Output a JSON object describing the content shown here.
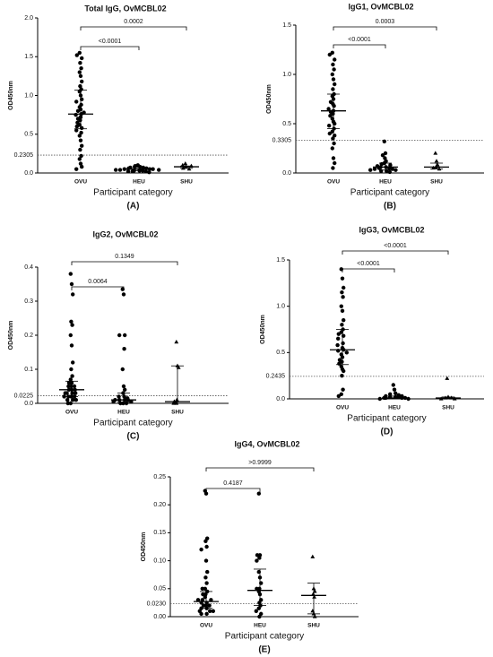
{
  "chart_data": [
    {
      "type": "dotplot",
      "title": "Total IgG, OvMCBL02",
      "y_label": "OD450nm",
      "x_label": "Participant category",
      "panel_label": "(A)",
      "categories": [
        "OVU",
        "HEU",
        "SHU"
      ],
      "groups": [
        {
          "marker": "circle",
          "values": [
            1.55,
            1.52,
            1.48,
            1.42,
            1.35,
            1.3,
            1.25,
            1.18,
            1.12,
            1.08,
            1.05,
            1.0,
            0.95,
            0.92,
            0.88,
            0.85,
            0.82,
            0.8,
            0.78,
            0.76,
            0.75,
            0.72,
            0.7,
            0.68,
            0.65,
            0.62,
            0.6,
            0.58,
            0.55,
            0.52,
            0.48,
            0.42,
            0.35,
            0.3,
            0.22,
            0.18,
            0.12,
            0.08,
            0.05
          ],
          "median": 0.76,
          "q1": 0.57,
          "q3": 1.07
        },
        {
          "marker": "circle",
          "values": [
            0.1,
            0.09,
            0.08,
            0.08,
            0.07,
            0.07,
            0.06,
            0.06,
            0.05,
            0.05,
            0.05,
            0.04,
            0.04,
            0.04,
            0.03,
            0.03,
            0.03,
            0.02,
            0.02,
            0.02,
            0.01
          ],
          "median": 0.05,
          "q1": 0.03,
          "q3": 0.07
        },
        {
          "marker": "triangle",
          "values": [
            0.12,
            0.1,
            0.09,
            0.08,
            0.06,
            0.05
          ],
          "median": 0.08,
          "q1": 0.06,
          "q3": 0.09
        }
      ],
      "cutoff": 0.2305,
      "comparisons": [
        {
          "from": "OVU",
          "to": "HEU",
          "p": "<0.0001"
        },
        {
          "from": "OVU",
          "to": "SHU",
          "p": "0.0002"
        }
      ],
      "ylim": [
        0,
        2
      ],
      "yticks": [
        {
          "value": 0,
          "label": "0.0"
        },
        {
          "value": 0.5,
          "label": "0.5"
        },
        {
          "value": 1,
          "label": "1.0"
        },
        {
          "value": 1.5,
          "label": "1.5"
        },
        {
          "value": 2,
          "label": "2.0"
        }
      ],
      "color": "#000000"
    },
    {
      "type": "dotplot",
      "title": "IgG1, OvMCBL02",
      "y_label": "OD450nm",
      "x_label": "Participant category",
      "panel_label": "(B)",
      "categories": [
        "OVU",
        "HEU",
        "SHU"
      ],
      "groups": [
        {
          "marker": "circle",
          "values": [
            1.22,
            1.2,
            1.15,
            1.1,
            1.05,
            1.0,
            0.95,
            0.9,
            0.85,
            0.8,
            0.78,
            0.75,
            0.72,
            0.7,
            0.68,
            0.65,
            0.63,
            0.62,
            0.6,
            0.58,
            0.55,
            0.52,
            0.5,
            0.48,
            0.45,
            0.42,
            0.4,
            0.38,
            0.35,
            0.3,
            0.25,
            0.15,
            0.1,
            0.05
          ],
          "median": 0.63,
          "q1": 0.45,
          "q3": 0.8
        },
        {
          "marker": "circle",
          "values": [
            0.32,
            0.2,
            0.18,
            0.15,
            0.12,
            0.1,
            0.09,
            0.08,
            0.07,
            0.06,
            0.06,
            0.05,
            0.05,
            0.04,
            0.04,
            0.03,
            0.03,
            0.02,
            0.02,
            0.01
          ],
          "median": 0.06,
          "q1": 0.03,
          "q3": 0.1
        },
        {
          "marker": "triangle",
          "values": [
            0.2,
            0.12,
            0.08,
            0.06,
            0.05,
            0.04
          ],
          "median": 0.06,
          "q1": 0.04,
          "q3": 0.1
        }
      ],
      "cutoff": 0.3305,
      "comparisons": [
        {
          "from": "OVU",
          "to": "HEU",
          "p": "<0.0001"
        },
        {
          "from": "OVU",
          "to": "SHU",
          "p": "0.0003"
        }
      ],
      "ylim": [
        0,
        1.5
      ],
      "yticks": [
        {
          "value": 0,
          "label": "0.0"
        },
        {
          "value": 0.5,
          "label": "0.5"
        },
        {
          "value": 1,
          "label": "1.0"
        },
        {
          "value": 1.5,
          "label": "1.5"
        }
      ],
      "color": "#000000"
    },
    {
      "type": "dotplot",
      "title": "IgG2, OvMCBL02",
      "y_label": "OD450nm",
      "x_label": "Participant category",
      "panel_label": "(C)",
      "categories": [
        "OVU",
        "HEU",
        "SHU"
      ],
      "groups": [
        {
          "marker": "circle",
          "values": [
            0.38,
            0.35,
            0.32,
            0.24,
            0.23,
            0.2,
            0.17,
            0.12,
            0.1,
            0.08,
            0.07,
            0.06,
            0.06,
            0.05,
            0.05,
            0.05,
            0.04,
            0.04,
            0.04,
            0.03,
            0.03,
            0.03,
            0.03,
            0.02,
            0.02,
            0.02,
            0.02,
            0.01,
            0.01,
            0.01,
            0.0,
            0.0
          ],
          "median": 0.04,
          "q1": 0.02,
          "q3": 0.065
        },
        {
          "marker": "circle",
          "values": [
            0.335,
            0.32,
            0.2,
            0.2,
            0.16,
            0.1,
            0.05,
            0.04,
            0.03,
            0.02,
            0.02,
            0.015,
            0.01,
            0.01,
            0.01,
            0.01,
            0.005,
            0.005,
            0.0,
            0.0,
            0.0
          ],
          "median": 0.01,
          "q1": 0.003,
          "q3": 0.03
        },
        {
          "marker": "triangle",
          "values": [
            0.18,
            0.11,
            0.105,
            0.01,
            0.005,
            0.0,
            0.0
          ],
          "median": 0.005,
          "q1": 0.0,
          "q3": 0.11
        }
      ],
      "cutoff": 0.0225,
      "comparisons": [
        {
          "from": "OVU",
          "to": "HEU",
          "p": "0.0064"
        },
        {
          "from": "OVU",
          "to": "SHU",
          "p": "0.1349"
        }
      ],
      "ylim": [
        0,
        0.4
      ],
      "yticks": [
        {
          "value": 0,
          "label": "0.0"
        },
        0.1,
        0.2,
        0.3,
        0.4
      ],
      "color": "#000000"
    },
    {
      "type": "dotplot",
      "title": "IgG3, OvMCBL02",
      "y_label": "OD450nm",
      "x_label": "Participant category",
      "panel_label": "(D)",
      "categories": [
        "OVU",
        "HEU",
        "SHU"
      ],
      "groups": [
        {
          "marker": "circle",
          "values": [
            1.4,
            1.3,
            1.2,
            1.15,
            1.1,
            1.0,
            0.95,
            0.85,
            0.8,
            0.75,
            0.72,
            0.7,
            0.68,
            0.65,
            0.6,
            0.58,
            0.55,
            0.53,
            0.52,
            0.5,
            0.48,
            0.45,
            0.42,
            0.4,
            0.38,
            0.35,
            0.32,
            0.3,
            0.25,
            0.1,
            0.05,
            0.03
          ],
          "median": 0.53,
          "q1": 0.37,
          "q3": 0.75
        },
        {
          "marker": "circle",
          "values": [
            0.15,
            0.1,
            0.06,
            0.05,
            0.04,
            0.03,
            0.03,
            0.02,
            0.02,
            0.02,
            0.01,
            0.01,
            0.01,
            0.01,
            0.0,
            0.0
          ],
          "median": 0.01,
          "q1": 0.005,
          "q3": 0.03
        },
        {
          "marker": "triangle",
          "values": [
            0.22,
            0.02,
            0.01,
            0.01,
            0.0,
            0.0
          ],
          "median": 0.01,
          "q1": 0.0,
          "q3": 0.02
        }
      ],
      "cutoff": 0.2435,
      "comparisons": [
        {
          "from": "OVU",
          "to": "HEU",
          "p": "<0.0001"
        },
        {
          "from": "OVU",
          "to": "SHU",
          "p": "<0.0001"
        }
      ],
      "ylim": [
        0,
        1.5
      ],
      "yticks": [
        {
          "value": 0,
          "label": "0.0"
        },
        {
          "value": 0.5,
          "label": "0.5"
        },
        {
          "value": 1,
          "label": "1.0"
        },
        {
          "value": 1.5,
          "label": "1.5"
        }
      ],
      "color": "#000000"
    },
    {
      "type": "dotplot",
      "title": "IgG4, OvMCBL02",
      "y_label": "OD450nm",
      "x_label": "Participant category",
      "panel_label": "(E)",
      "categories": [
        "OVU",
        "HEU",
        "SHU"
      ],
      "groups": [
        {
          "marker": "circle",
          "values": [
            0.225,
            0.22,
            0.14,
            0.135,
            0.125,
            0.12,
            0.1,
            0.08,
            0.07,
            0.06,
            0.05,
            0.05,
            0.045,
            0.04,
            0.04,
            0.035,
            0.03,
            0.03,
            0.03,
            0.025,
            0.025,
            0.02,
            0.02,
            0.02,
            0.015,
            0.015,
            0.01,
            0.01,
            0.01,
            0.005,
            0.005
          ],
          "median": 0.027,
          "q1": 0.015,
          "q3": 0.045
        },
        {
          "marker": "circle",
          "values": [
            0.22,
            0.11,
            0.11,
            0.105,
            0.1,
            0.08,
            0.07,
            0.06,
            0.05,
            0.05,
            0.045,
            0.04,
            0.03,
            0.025,
            0.02,
            0.015,
            0.01,
            0.005,
            0.0
          ],
          "median": 0.047,
          "q1": 0.02,
          "q3": 0.085
        },
        {
          "marker": "triangle",
          "values": [
            0.107,
            0.05,
            0.045,
            0.04,
            0.035,
            0.01,
            0.005,
            0.0
          ],
          "median": 0.038,
          "q1": 0.005,
          "q3": 0.06
        }
      ],
      "cutoff": {
        "value": 0.023,
        "label": "0.0230"
      },
      "comparisons": [
        {
          "from": "OVU",
          "to": "HEU",
          "p": "0.4187"
        },
        {
          "from": "OVU",
          "to": "SHU",
          "p": ">0.9999"
        }
      ],
      "ylim": [
        0,
        0.25
      ],
      "yticks": [
        {
          "value": 0,
          "label": "0.00"
        },
        {
          "value": 0.05,
          "label": "0.05"
        },
        {
          "value": 0.1,
          "label": "0.10"
        },
        {
          "value": 0.15,
          "label": "0.15"
        },
        {
          "value": 0.2,
          "label": "0.20"
        },
        {
          "value": 0.25,
          "label": "0.25"
        }
      ],
      "color": "#000000"
    }
  ]
}
